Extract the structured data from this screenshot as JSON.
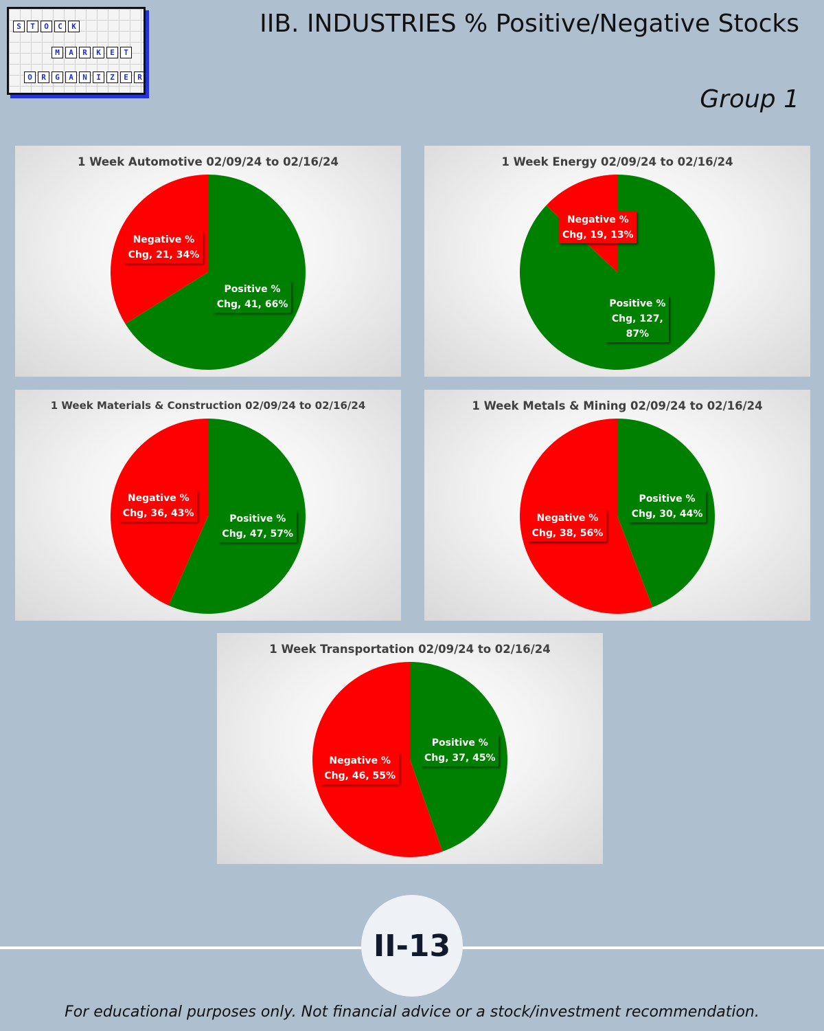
{
  "logo": {
    "rows": [
      [
        "S",
        "T",
        "O",
        "C",
        "K"
      ],
      [
        "M",
        "A",
        "R",
        "K",
        "E",
        "T"
      ],
      [
        "O",
        "R",
        "G",
        "A",
        "N",
        "I",
        "Z",
        "E",
        "R"
      ]
    ]
  },
  "header": {
    "title": "IIB. INDUSTRIES % Positive/Negative Stocks",
    "subtitle": "Group 1"
  },
  "colors": {
    "positive": "#008000",
    "negative": "#ff0000"
  },
  "chart_data": [
    {
      "type": "pie",
      "title": "1 Week Automotive 02/09/24 to 02/16/24",
      "slices": [
        {
          "name": "Positive % Chg",
          "value": 41,
          "percent": 66,
          "label_lines": [
            "Positive %",
            "Chg, 41, 66%"
          ]
        },
        {
          "name": "Negative % Chg",
          "value": 21,
          "percent": 34,
          "label_lines": [
            "Negative %",
            "Chg, 21, 34%"
          ]
        }
      ]
    },
    {
      "type": "pie",
      "title": "1 Week Energy 02/09/24 to 02/16/24",
      "slices": [
        {
          "name": "Positive % Chg",
          "value": 127,
          "percent": 87,
          "label_lines": [
            "Positive %",
            "Chg, 127,",
            "87%"
          ]
        },
        {
          "name": "Negative % Chg",
          "value": 19,
          "percent": 13,
          "label_lines": [
            "Negative %",
            "Chg, 19, 13%"
          ]
        }
      ]
    },
    {
      "type": "pie",
      "title": "1 Week Materials & Construction 02/09/24 to 02/16/24",
      "slices": [
        {
          "name": "Positive % Chg",
          "value": 47,
          "percent": 57,
          "label_lines": [
            "Positive %",
            "Chg, 47, 57%"
          ]
        },
        {
          "name": "Negative % Chg",
          "value": 36,
          "percent": 43,
          "label_lines": [
            "Negative %",
            "Chg, 36, 43%"
          ]
        }
      ]
    },
    {
      "type": "pie",
      "title": "1 Week Metals & Mining 02/09/24 to 02/16/24",
      "slices": [
        {
          "name": "Positive % Chg",
          "value": 30,
          "percent": 44,
          "label_lines": [
            "Positive %",
            "Chg, 30, 44%"
          ]
        },
        {
          "name": "Negative % Chg",
          "value": 38,
          "percent": 56,
          "label_lines": [
            "Negative %",
            "Chg, 38, 56%"
          ]
        }
      ]
    },
    {
      "type": "pie",
      "title": "1 Week Transportation 02/09/24 to 02/16/24",
      "slices": [
        {
          "name": "Positive % Chg",
          "value": 37,
          "percent": 45,
          "label_lines": [
            "Positive %",
            "Chg, 37, 45%"
          ]
        },
        {
          "name": "Negative % Chg",
          "value": 46,
          "percent": 55,
          "label_lines": [
            "Negative %",
            "Chg, 46, 55%"
          ]
        }
      ]
    }
  ],
  "footer": {
    "page_number": "II-13",
    "disclaimer": "For educational purposes only. Not financial advice or a stock/investment recommendation."
  }
}
